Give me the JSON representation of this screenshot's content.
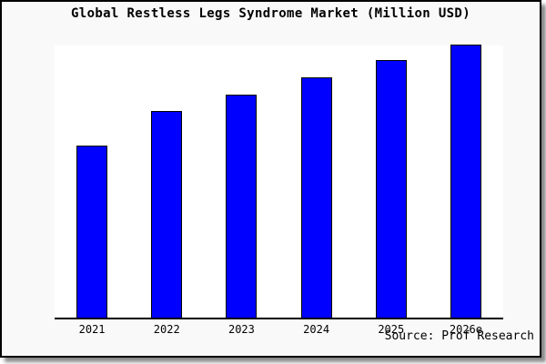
{
  "title": "Global Restless Legs Syndrome Market (Million USD)",
  "source": "Source: Prof Research",
  "colors": {
    "bar_fill": "#0000ff",
    "bar_border": "#000000",
    "figure_background": "#f9f9f9",
    "plot_background": "#ffffff",
    "axis_line": "#000000",
    "frame_border": "#000000",
    "text": "#000000"
  },
  "chart_data": {
    "type": "bar",
    "title": "Global Restless Legs Syndrome Market (Million USD)",
    "categories": [
      "2021",
      "2022",
      "2023",
      "2024",
      "2025",
      "2026e"
    ],
    "values": [
      62.9,
      75.6,
      81.6,
      88.0,
      94.3,
      100.0
    ],
    "value_scale": "relative, percent of 2026e bar (no numeric y-axis shown in chart)",
    "xlabel": "",
    "ylabel": "",
    "ylim": [
      0,
      100
    ],
    "grid": false,
    "legend_position": "none",
    "y_axis_shown": false,
    "x_axis_shown": true,
    "source_note": "Source: Prof Research"
  }
}
